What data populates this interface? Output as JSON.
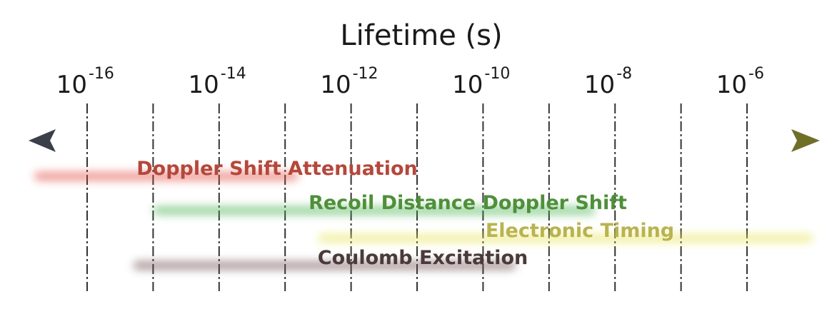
{
  "diagram": {
    "axis_title": "Lifetime (s)",
    "ticks": [
      {
        "base": "10",
        "exponent": "-16"
      },
      {
        "base": "10",
        "exponent": "-14"
      },
      {
        "base": "10",
        "exponent": "-12"
      },
      {
        "base": "10",
        "exponent": "-10"
      },
      {
        "base": "10",
        "exponent": "-8"
      },
      {
        "base": "10",
        "exponent": "-6"
      }
    ],
    "axis_colors": {
      "left": "#3a3f4a",
      "middle": "#5a3a3a",
      "right": "#7a7a20"
    },
    "techniques": [
      {
        "label": "Doppler Shift Attenuation",
        "color": "#b5473b",
        "glow": "#e0443a",
        "from_exp": -16.8,
        "to_exp": -12.8
      },
      {
        "label": "Recoil Distance Doppler Shift",
        "color": "#4f8f3a",
        "glow": "#43b04a",
        "from_exp": -15.0,
        "to_exp": -8.3
      },
      {
        "label": "Electronic Timing",
        "color": "#b9b350",
        "glow": "#e8e455",
        "from_exp": -12.5,
        "to_exp": -5.0
      },
      {
        "label": "Coulomb Excitation",
        "color": "#4a3a3a",
        "glow": "#6a4848",
        "from_exp": -15.3,
        "to_exp": -9.5
      }
    ]
  }
}
